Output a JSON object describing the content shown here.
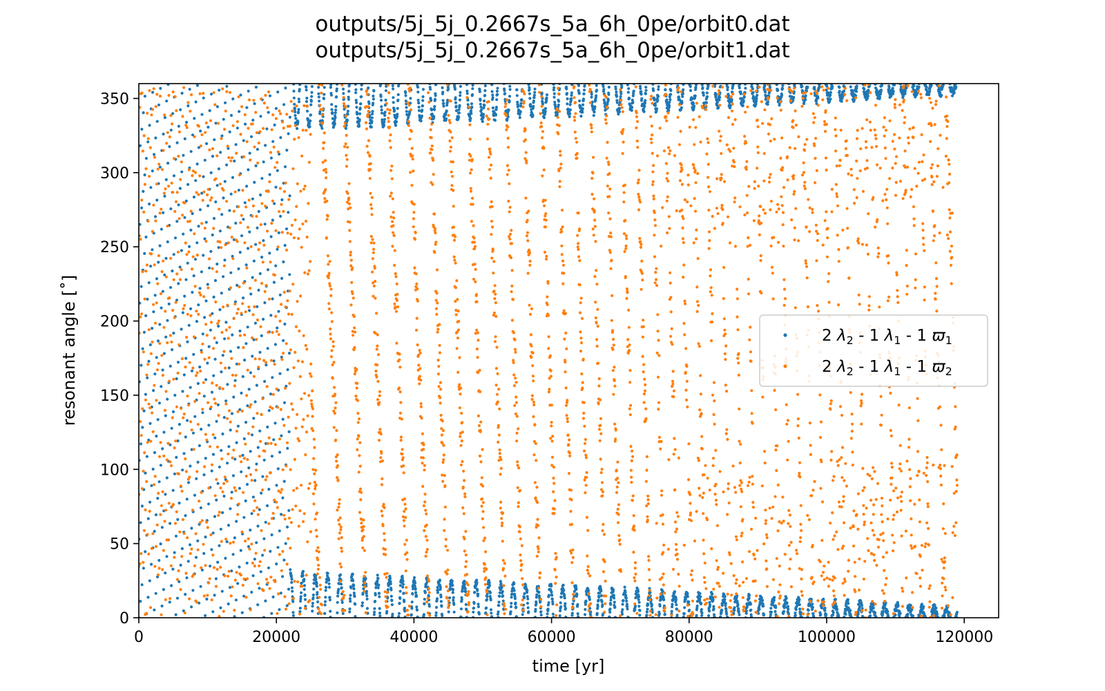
{
  "chart_data": {
    "type": "scatter",
    "title_lines": [
      "outputs/5j_5j_0.2667s_5a_6h_0pe/orbit0.dat",
      "outputs/5j_5j_0.2667s_5a_6h_0pe/orbit1.dat"
    ],
    "xlabel": "time [yr]",
    "ylabel": "resonant angle [˚]",
    "xlim": [
      0,
      125000
    ],
    "ylim": [
      0,
      360
    ],
    "xticks": [
      0,
      20000,
      40000,
      60000,
      80000,
      100000,
      120000
    ],
    "xtick_labels": [
      "0",
      "20000",
      "40000",
      "60000",
      "80000",
      "100000",
      "120000"
    ],
    "yticks": [
      0,
      50,
      100,
      150,
      200,
      250,
      300,
      350
    ],
    "ytick_labels": [
      "0",
      "50",
      "100",
      "150",
      "200",
      "250",
      "300",
      "350"
    ],
    "legend_location": "center-right",
    "series": [
      {
        "name": "2 λ2 - 1 λ1 - 1 ϖ1",
        "legend_parts": [
          "2 ",
          "λ",
          "2",
          " - 1 ",
          "λ",
          "1",
          " - 1 ",
          "ϖ",
          "1"
        ],
        "color": "#1f77b4",
        "t_max": 119000,
        "description_of_behavior": "circulates uniformly before ~22000 yr, then librates near 0/360 deg",
        "key_points": [
          {
            "x": 0,
            "y": 180
          },
          {
            "x": 22000,
            "y": 180
          },
          {
            "x": 30000,
            "y": 15
          },
          {
            "x": 40000,
            "y": 10
          },
          {
            "x": 60000,
            "y": 8
          },
          {
            "x": 80000,
            "y": 6
          },
          {
            "x": 100000,
            "y": 5
          },
          {
            "x": 119000,
            "y": 5
          }
        ]
      },
      {
        "name": "2 λ2 - 1 λ1 - 1 ϖ2",
        "legend_parts": [
          "2 ",
          "λ",
          "2",
          " - 1 ",
          "λ",
          "1",
          " - 1 ",
          "ϖ",
          "2"
        ],
        "color": "#ff7f0e",
        "t_max": 119000,
        "description_of_behavior": "circulates over full 0-360 range with vertical sweeping bands",
        "key_points": [
          {
            "x": 0,
            "y": 180
          },
          {
            "x": 40000,
            "y": 180
          },
          {
            "x": 80000,
            "y": 180
          },
          {
            "x": 119000,
            "y": 180
          }
        ]
      }
    ]
  }
}
